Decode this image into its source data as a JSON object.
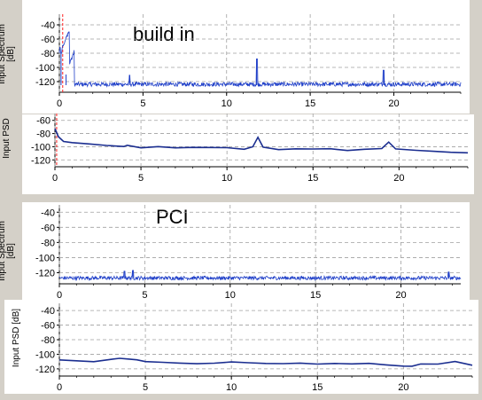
{
  "colors": {
    "trace": "#1f3fc8",
    "trace_dark": "#1b2e90",
    "grid": "#a0a0a0",
    "marker": "#ff2020",
    "background": "#d4d0c8"
  },
  "chart_data": [
    {
      "id": "top-spectrum",
      "type": "line",
      "title": "",
      "annotation": "build in",
      "ylabel": "Input Spectrum\n[dB]",
      "xlim": [
        0,
        24
      ],
      "ylim": [
        -130,
        -30
      ],
      "yticks": [
        -40,
        -60,
        -80,
        -100,
        -120
      ],
      "xticks": [
        0,
        5,
        10,
        15,
        20
      ],
      "noise_floor": -125,
      "noise_amp": 6,
      "peaks": [
        {
          "x": 0.1,
          "y": -80
        },
        {
          "x": 0.4,
          "y": -110
        },
        {
          "x": 4.2,
          "y": -111
        },
        {
          "x": 11.8,
          "y": -88
        },
        {
          "x": 19.4,
          "y": -104
        }
      ],
      "marker_x": 0.2
    },
    {
      "id": "top-psd",
      "type": "line",
      "title": "",
      "ylabel": "Input PSD",
      "xlim": [
        0,
        24
      ],
      "ylim": [
        -125,
        -55
      ],
      "yticks": [
        -60,
        -80,
        -100,
        -120
      ],
      "xticks": [
        0,
        5,
        10,
        15,
        20
      ],
      "x": [
        0,
        0.2,
        0.5,
        1,
        2,
        3,
        4,
        4.2,
        5,
        6,
        7,
        8,
        9,
        10,
        11,
        11.5,
        11.8,
        12.1,
        13,
        14,
        15,
        16,
        17,
        18,
        19,
        19.4,
        19.8,
        21,
        22,
        23,
        24
      ],
      "y": [
        -72,
        -85,
        -92,
        -94,
        -96,
        -98,
        -100,
        -98,
        -101,
        -100,
        -102,
        -101,
        -101,
        -102,
        -104,
        -100,
        -86,
        -100,
        -104,
        -103,
        -104,
        -103,
        -105,
        -104,
        -102,
        -93,
        -104,
        -106,
        -107,
        -108,
        -109
      ],
      "marker_x": 0.1
    },
    {
      "id": "bottom-spectrum",
      "type": "line",
      "title": "",
      "annotation": "PCI",
      "ylabel": "Input Spectrum\n[dB]",
      "xlim": [
        0,
        23.5
      ],
      "ylim": [
        -130,
        -35
      ],
      "yticks": [
        -40,
        -60,
        -80,
        -100,
        -120
      ],
      "xticks": [
        0,
        5,
        10,
        15,
        20
      ],
      "noise_floor": -128,
      "noise_amp": 5,
      "peaks": [
        {
          "x": 3.8,
          "y": -118
        },
        {
          "x": 4.3,
          "y": -117
        },
        {
          "x": 22.8,
          "y": -119
        }
      ]
    },
    {
      "id": "bottom-psd",
      "type": "line",
      "title": "",
      "ylabel": "Input PSD [dB]",
      "xlim": [
        0,
        24
      ],
      "ylim": [
        -125,
        -35
      ],
      "yticks": [
        -40,
        -60,
        -80,
        -100,
        -120
      ],
      "xticks": [
        0,
        5,
        10,
        15,
        20
      ],
      "x": [
        0,
        1,
        2,
        3,
        3.5,
        4,
        4.5,
        5,
        6,
        7,
        8,
        9,
        10,
        11,
        12,
        13,
        14,
        15,
        16,
        17,
        18,
        19,
        20,
        20.5,
        21,
        22,
        23,
        23.5,
        24
      ],
      "y": [
        -108,
        -109,
        -110,
        -107,
        -105,
        -106,
        -108,
        -110,
        -111,
        -112,
        -113,
        -112,
        -111,
        -112,
        -112,
        -113,
        -112,
        -113,
        -112,
        -113,
        -112,
        -115,
        -117,
        -116,
        -114,
        -113,
        -110,
        -112,
        -115
      ]
    }
  ]
}
